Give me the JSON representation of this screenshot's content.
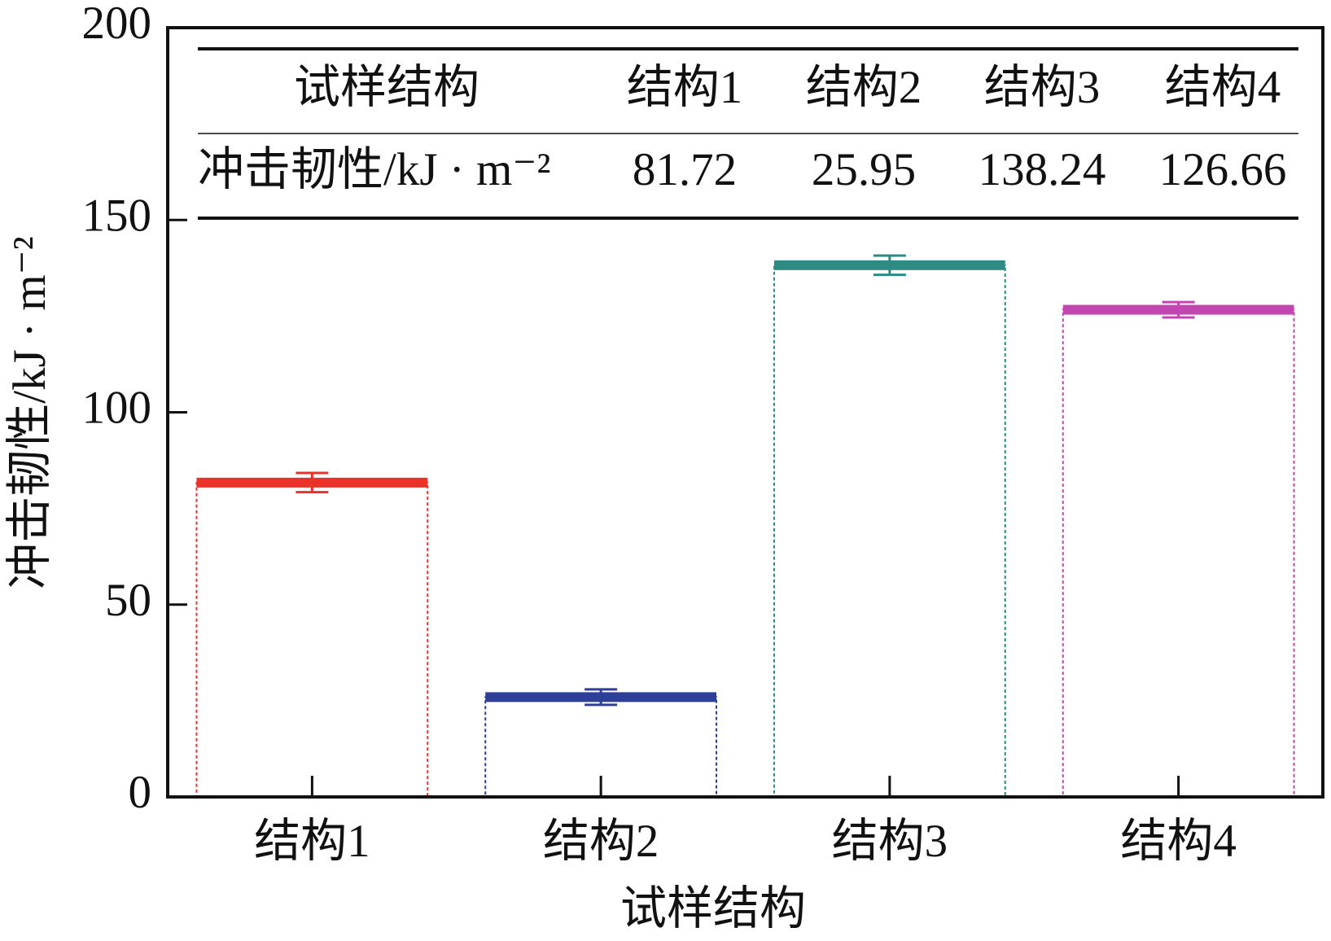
{
  "chart_data": {
    "type": "bar",
    "x_label": "试样结构",
    "y_label": "冲击韧性/kJ · m⁻²",
    "categories": [
      "结构1",
      "结构2",
      "结构3",
      "结构4"
    ],
    "values": [
      81.72,
      25.95,
      138.24,
      126.66
    ],
    "errors": [
      2.5,
      2,
      2.5,
      2
    ],
    "colors": [
      "#e8322a",
      "#2e3f99",
      "#2e8b84",
      "#c246b0"
    ],
    "ylim": [
      0,
      200
    ],
    "yticks": [
      0,
      50,
      100,
      150,
      200
    ],
    "table": {
      "header": "试样结构",
      "row_label": "冲击韧性/kJ · m⁻²"
    }
  }
}
